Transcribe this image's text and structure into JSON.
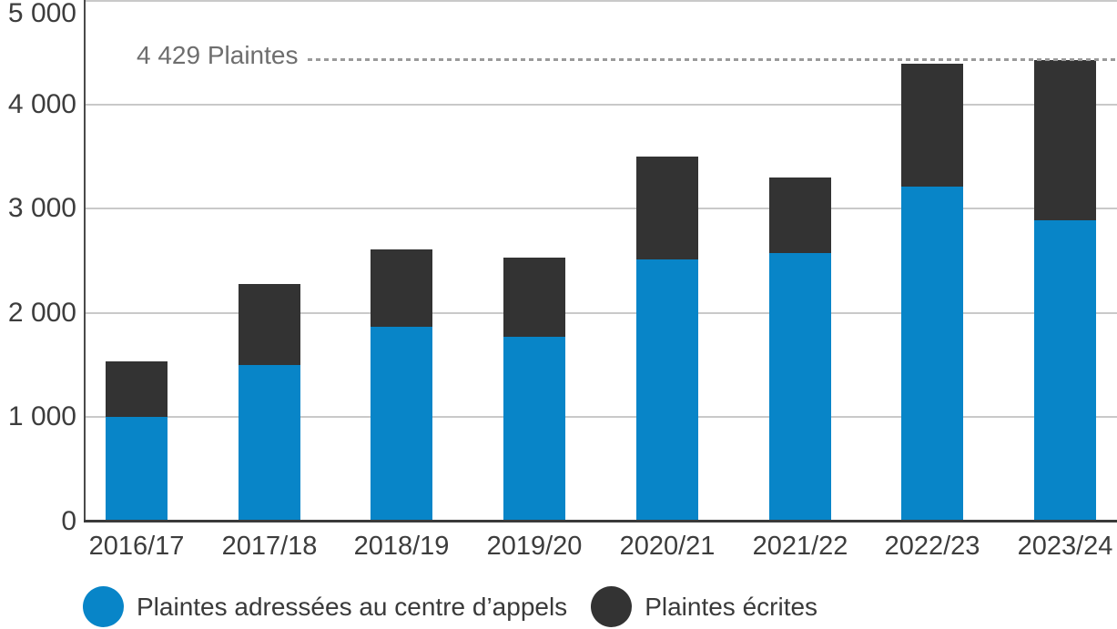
{
  "chart_data": {
    "type": "bar",
    "stacked": true,
    "categories": [
      "2016/17",
      "2017/18",
      "2018/19",
      "2019/20",
      "2020/21",
      "2021/22",
      "2022/23",
      "2023/24"
    ],
    "series": [
      {
        "name": "Plaintes adressées au centre d’appels",
        "color": "#0885C8",
        "values": [
          1000,
          1505,
          1865,
          1775,
          2510,
          2570,
          3210,
          2890
        ]
      },
      {
        "name": "Plaintes écrites",
        "color": "#333333",
        "values": [
          535,
          780,
          745,
          755,
          990,
          720,
          1175,
          1539
        ]
      }
    ],
    "totals": [
      1535,
      2285,
      2610,
      2530,
      3500,
      3290,
      4385,
      4429
    ],
    "title": "",
    "xlabel": "",
    "ylabel": "",
    "ylim": [
      0,
      5000
    ],
    "ytick_labels": [
      "0",
      "1 000",
      "2 000",
      "3 000",
      "4 000",
      "5 000"
    ],
    "grid": "horizontal",
    "legend_position": "bottom",
    "annotation": {
      "label": "4 429 Plaintes",
      "value": 4429
    }
  },
  "colors": {
    "background": "#ffffff",
    "gridline": "#c9c9c9",
    "axis_line": "#4a4a4a",
    "baseline": "#3a3a3a",
    "tick_text": "#3d3d3d",
    "annotation_text": "#6e6e6e",
    "annotation_line": "#9a9a9a",
    "legend_text": "#3a3a3a"
  }
}
